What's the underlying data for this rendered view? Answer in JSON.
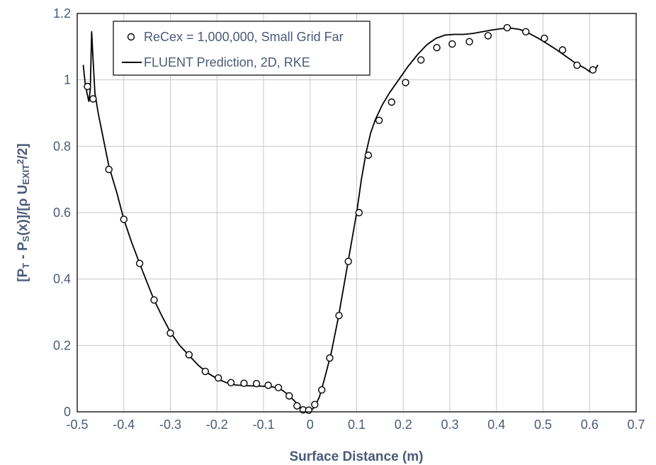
{
  "chart_data": {
    "type": "scatter",
    "xlabel": "Surface Distance (m)",
    "ylabel": {
      "parts": [
        {
          "t": "[P",
          "s": ""
        },
        {
          "t": "T",
          "s": "sub"
        },
        {
          "t": " - P",
          "s": ""
        },
        {
          "t": "S",
          "s": "sub"
        },
        {
          "t": "(x)]/[ρ U",
          "s": ""
        },
        {
          "t": "EXIT",
          "s": "sub"
        },
        {
          "t": "2",
          "s": "sup"
        },
        {
          "t": "/2]",
          "s": ""
        }
      ]
    },
    "xlim": [
      -0.5,
      0.7
    ],
    "ylim": [
      0,
      1.2
    ],
    "x_ticks": [
      "-0.5",
      "-0.4",
      "-0.3",
      "-0.2",
      "-0.1",
      "0",
      "0.1",
      "0.2",
      "0.3",
      "0.4",
      "0.5",
      "0.6",
      "0.7"
    ],
    "y_ticks": [
      "0",
      "0.2",
      "0.4",
      "0.6",
      "0.8",
      "1",
      "1.2"
    ],
    "grid": true,
    "legend_position": "top-left",
    "series": [
      {
        "name": "ReCex = 1,000,000, Small Grid Far",
        "style": "open-circle",
        "points": [
          [
            -0.478,
            0.98
          ],
          [
            -0.466,
            0.943
          ],
          [
            -0.432,
            0.73
          ],
          [
            -0.4,
            0.58
          ],
          [
            -0.366,
            0.447
          ],
          [
            -0.335,
            0.337
          ],
          [
            -0.3,
            0.237
          ],
          [
            -0.26,
            0.172
          ],
          [
            -0.225,
            0.122
          ],
          [
            -0.197,
            0.102
          ],
          [
            -0.17,
            0.088
          ],
          [
            -0.142,
            0.086
          ],
          [
            -0.115,
            0.085
          ],
          [
            -0.09,
            0.08
          ],
          [
            -0.068,
            0.073
          ],
          [
            -0.045,
            0.048
          ],
          [
            -0.028,
            0.018
          ],
          [
            -0.015,
            0.006
          ],
          [
            -0.003,
            0.005
          ],
          [
            0.01,
            0.022
          ],
          [
            0.025,
            0.066
          ],
          [
            0.042,
            0.162
          ],
          [
            0.062,
            0.29
          ],
          [
            0.082,
            0.453
          ],
          [
            0.105,
            0.6
          ],
          [
            0.125,
            0.773
          ],
          [
            0.148,
            0.878
          ],
          [
            0.175,
            0.933
          ],
          [
            0.205,
            0.992
          ],
          [
            0.238,
            1.06
          ],
          [
            0.272,
            1.097
          ],
          [
            0.305,
            1.108
          ],
          [
            0.342,
            1.115
          ],
          [
            0.382,
            1.133
          ],
          [
            0.423,
            1.157
          ],
          [
            0.463,
            1.145
          ],
          [
            0.503,
            1.125
          ],
          [
            0.542,
            1.09
          ],
          [
            0.573,
            1.044
          ],
          [
            0.607,
            1.03
          ]
        ]
      },
      {
        "name": "FLUENT Prediction, 2D, RKE",
        "style": "line",
        "points": [
          [
            -0.487,
            1.045
          ],
          [
            -0.483,
            0.99
          ],
          [
            -0.479,
            0.96
          ],
          [
            -0.475,
            0.935
          ],
          [
            -0.472,
            0.97
          ],
          [
            -0.469,
            1.145
          ],
          [
            -0.466,
            1.06
          ],
          [
            -0.462,
            0.96
          ],
          [
            -0.455,
            0.9
          ],
          [
            -0.445,
            0.83
          ],
          [
            -0.432,
            0.74
          ],
          [
            -0.415,
            0.66
          ],
          [
            -0.4,
            0.58
          ],
          [
            -0.383,
            0.51
          ],
          [
            -0.366,
            0.447
          ],
          [
            -0.35,
            0.39
          ],
          [
            -0.335,
            0.337
          ],
          [
            -0.318,
            0.288
          ],
          [
            -0.3,
            0.24
          ],
          [
            -0.28,
            0.2
          ],
          [
            -0.26,
            0.17
          ],
          [
            -0.24,
            0.14
          ],
          [
            -0.22,
            0.117
          ],
          [
            -0.2,
            0.1
          ],
          [
            -0.18,
            0.088
          ],
          [
            -0.16,
            0.081
          ],
          [
            -0.14,
            0.079
          ],
          [
            -0.12,
            0.078
          ],
          [
            -0.1,
            0.077
          ],
          [
            -0.08,
            0.075
          ],
          [
            -0.065,
            0.07
          ],
          [
            -0.05,
            0.055
          ],
          [
            -0.035,
            0.035
          ],
          [
            -0.02,
            0.012
          ],
          [
            -0.01,
            0.003
          ],
          [
            0.0,
            0.002
          ],
          [
            0.01,
            0.015
          ],
          [
            0.02,
            0.045
          ],
          [
            0.03,
            0.095
          ],
          [
            0.045,
            0.175
          ],
          [
            0.06,
            0.28
          ],
          [
            0.075,
            0.4
          ],
          [
            0.09,
            0.52
          ],
          [
            0.1,
            0.6
          ],
          [
            0.11,
            0.7
          ],
          [
            0.12,
            0.78
          ],
          [
            0.13,
            0.84
          ],
          [
            0.14,
            0.88
          ],
          [
            0.155,
            0.925
          ],
          [
            0.17,
            0.96
          ],
          [
            0.19,
            1.0
          ],
          [
            0.21,
            1.04
          ],
          [
            0.23,
            1.075
          ],
          [
            0.25,
            1.105
          ],
          [
            0.27,
            1.125
          ],
          [
            0.29,
            1.135
          ],
          [
            0.31,
            1.137
          ],
          [
            0.33,
            1.137
          ],
          [
            0.35,
            1.14
          ],
          [
            0.37,
            1.145
          ],
          [
            0.39,
            1.15
          ],
          [
            0.41,
            1.154
          ],
          [
            0.43,
            1.156
          ],
          [
            0.45,
            1.152
          ],
          [
            0.47,
            1.14
          ],
          [
            0.49,
            1.125
          ],
          [
            0.51,
            1.108
          ],
          [
            0.53,
            1.09
          ],
          [
            0.55,
            1.07
          ],
          [
            0.57,
            1.05
          ],
          [
            0.59,
            1.035
          ],
          [
            0.6,
            1.025
          ],
          [
            0.605,
            1.022
          ],
          [
            0.612,
            1.03
          ],
          [
            0.618,
            1.045
          ]
        ]
      }
    ]
  }
}
